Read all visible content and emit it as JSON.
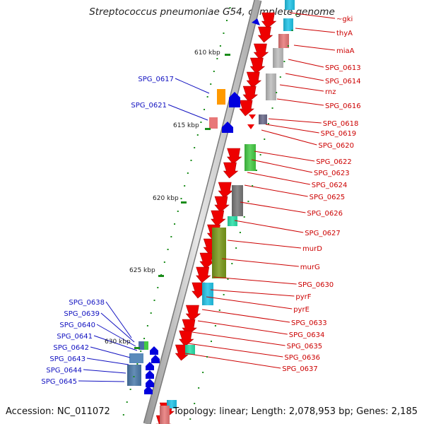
{
  "title": "Streptococcus pneumoniae G54, complete genome",
  "footer": {
    "accession": "Accession: NC_011072",
    "summary": "Topology: linear; Length: 2,078,953 bp; Genes: 2,185"
  },
  "colors": {
    "right_label": "#cc0000",
    "left_label": "#1010c0",
    "ruler_mark": "#1a8c1a",
    "backbone_light": "#c8c8c8",
    "backbone_dark": "#555555"
  },
  "ruler": [
    {
      "label": "610 kbp"
    },
    {
      "label": "615 kbp"
    },
    {
      "label": "620 kbp"
    },
    {
      "label": "625 kbp"
    },
    {
      "label": "630 kbp"
    }
  ],
  "right_labels": [
    "~gki",
    "thyA",
    "miaA",
    "SPG_0613",
    "SPG_0614",
    "rnz",
    "SPG_0616",
    "SPG_0618",
    "SPG_0619",
    "SPG_0620",
    "SPG_0622",
    "SPG_0623",
    "SPG_0624",
    "SPG_0625",
    "SPG_0626",
    "SPG_0627",
    "murD",
    "murG",
    "SPG_0630",
    "pyrF",
    "pyrE",
    "SPG_0633",
    "SPG_0634",
    "SPG_0635",
    "SPG_0636",
    "SPG_0637"
  ],
  "left_labels": [
    "SPG_0617",
    "SPG_0621",
    "SPG_0638",
    "SPG_0639",
    "SPG_0640",
    "SPG_0641",
    "SPG_0642",
    "SPG_0643",
    "SPG_0644",
    "SPG_0645"
  ]
}
